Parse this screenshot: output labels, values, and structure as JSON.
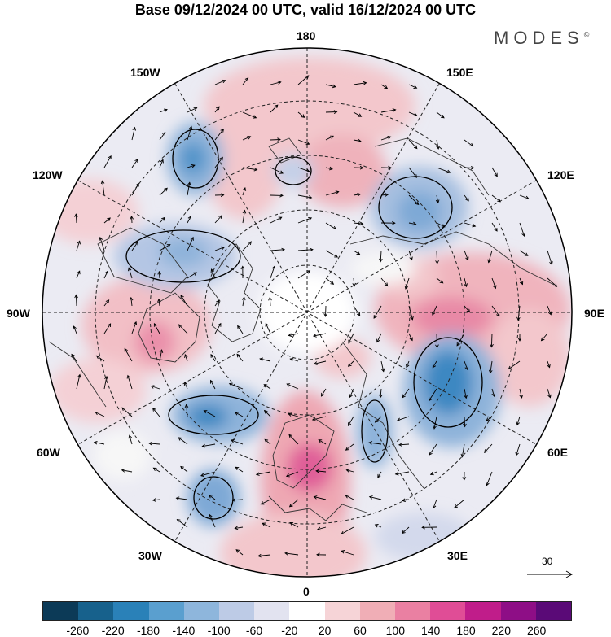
{
  "title": "Base 09/12/2024 00 UTC, valid 16/12/2024 00 UTC",
  "brand": "MODES",
  "brand_mark": "©",
  "longitude_labels": {
    "lon_180": "180",
    "lon_150w": "150W",
    "lon_150e": "150E",
    "lon_120w": "120W",
    "lon_120e": "120E",
    "lon_90w": "90W",
    "lon_90e": "90E",
    "lon_60w": "60W",
    "lon_60e": "60E",
    "lon_30w": "30W",
    "lon_30e": "30E",
    "lon_0": "0"
  },
  "reference_vector_label": "30",
  "colorbar": {
    "colors": [
      "#0c3a57",
      "#17618c",
      "#2a81b8",
      "#5a9fcf",
      "#8eb6dc",
      "#bdcbe6",
      "#e2e3f0",
      "#ffffff",
      "#f6d4d7",
      "#f0aeb6",
      "#ea80a2",
      "#e04d96",
      "#c01d8a",
      "#8e0e86",
      "#5a0a77"
    ],
    "ticks": [
      "-260",
      "-220",
      "-180",
      "-140",
      "-100",
      "-60",
      "-20",
      "20",
      "60",
      "100",
      "140",
      "180",
      "220",
      "260"
    ]
  },
  "colors": {
    "coast": "#333333",
    "grid": "#222222",
    "disk_border": "#000000"
  }
}
